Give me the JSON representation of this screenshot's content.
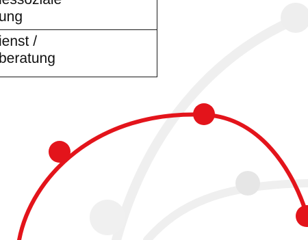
{
  "table": {
    "rows": [
      {
        "line1": "nessoziale",
        "line2": "ung"
      },
      {
        "line1": "ienst /",
        "line2": "beratung"
      }
    ]
  },
  "graphic": {
    "accent_color": "#e3141b",
    "muted_color": "#eeeeee",
    "dot_color_muted": "#e6e6e6"
  }
}
